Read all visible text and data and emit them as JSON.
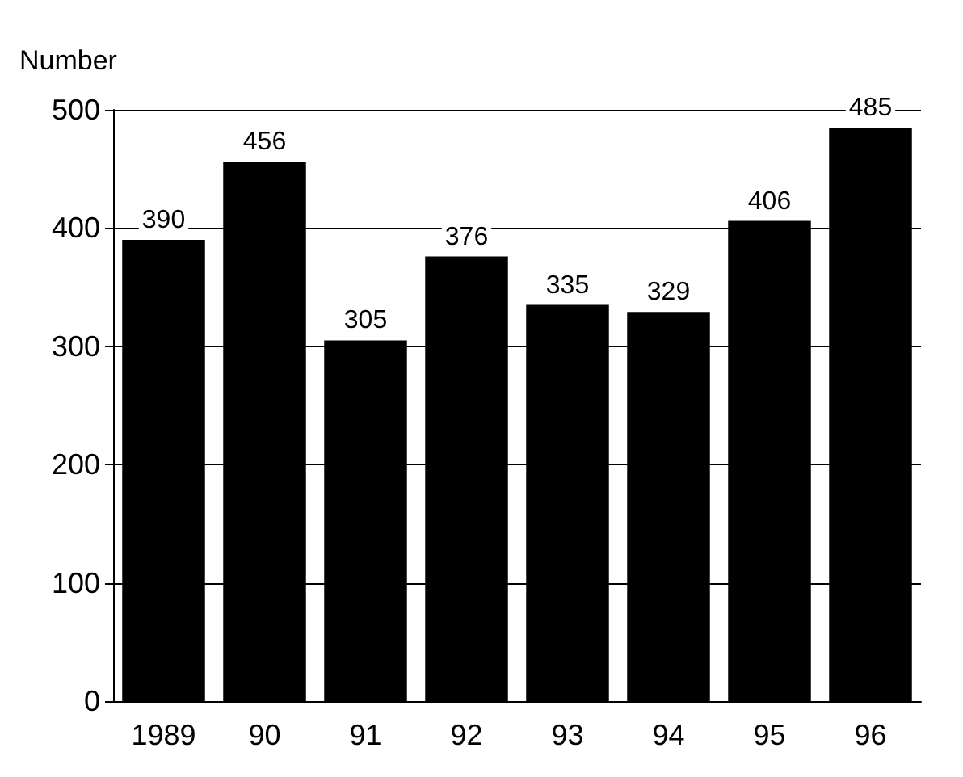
{
  "chart_data": {
    "type": "bar",
    "ylabel": "Number",
    "categories": [
      "1989",
      "90",
      "91",
      "92",
      "93",
      "94",
      "95",
      "96"
    ],
    "values": [
      390,
      456,
      305,
      376,
      335,
      329,
      406,
      485
    ],
    "color": "#000000",
    "ylim": [
      0,
      500
    ],
    "yticks": [
      0,
      100,
      200,
      300,
      400,
      500
    ],
    "grid": "y",
    "data_labels": true
  }
}
